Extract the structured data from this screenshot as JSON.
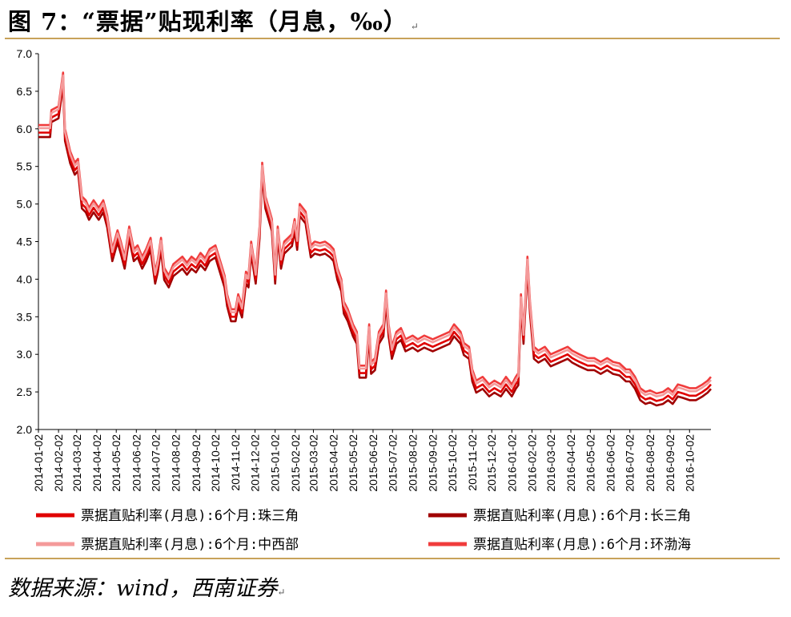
{
  "title": "图 7：“票据”贴现利率（月息，‰）",
  "title_mark": "↵",
  "source": "数据来源：wind，西南证券",
  "source_mark": "↵",
  "colors": {
    "rule": "#c8a25a",
    "series": [
      "#e00000",
      "#a00000",
      "#f49a9a",
      "#f03c3c"
    ]
  },
  "chart_data": {
    "type": "line",
    "ylim": [
      2.0,
      7.0
    ],
    "yticks": [
      "7.0",
      "6.5",
      "6.0",
      "5.5",
      "5.0",
      "4.5",
      "4.0",
      "3.5",
      "3.0",
      "2.5",
      "2.0"
    ],
    "x_tick_labels": [
      "2014-01-02",
      "2014-02-02",
      "2014-03-02",
      "2014-04-02",
      "2014-05-02",
      "2014-06-02",
      "2014-07-02",
      "2014-08-02",
      "2014-09-02",
      "2014-10-02",
      "2014-11-02",
      "2014-12-02",
      "2015-01-02",
      "2015-02-02",
      "2015-03-02",
      "2015-04-02",
      "2015-05-02",
      "2015-06-02",
      "2015-07-02",
      "2015-08-02",
      "2015-09-02",
      "2015-10-02",
      "2015-11-02",
      "2015-12-02",
      "2016-01-02",
      "2016-02-02",
      "2016-03-02",
      "2016-04-02",
      "2016-05-02",
      "2016-06-02",
      "2016-07-02",
      "2016-08-02",
      "2016-09-02",
      "2016-10-02"
    ],
    "x_range": [
      "2014-01-02",
      "2016-11-04"
    ],
    "legend": "bottom",
    "series": [
      {
        "name": "票据直贴利率(月息):6个月:珠三角",
        "offset": 0.0
      },
      {
        "name": "票据直贴利率(月息):6个月:长三角",
        "offset": -0.06
      },
      {
        "name": "票据直贴利率(月息):6个月:中西部",
        "offset": 0.06
      },
      {
        "name": "票据直贴利率(月息):6个月:环渤海",
        "offset": 0.1
      }
    ],
    "base_series": [
      [
        "2014-01-02",
        5.95
      ],
      [
        "2014-01-20",
        5.95
      ],
      [
        "2014-01-22",
        6.15
      ],
      [
        "2014-02-02",
        6.2
      ],
      [
        "2014-02-09",
        6.65
      ],
      [
        "2014-02-12",
        5.9
      ],
      [
        "2014-02-20",
        5.6
      ],
      [
        "2014-02-27",
        5.45
      ],
      [
        "2014-03-04",
        5.5
      ],
      [
        "2014-03-10",
        5.0
      ],
      [
        "2014-03-16",
        4.95
      ],
      [
        "2014-03-21",
        4.85
      ],
      [
        "2014-03-28",
        4.95
      ],
      [
        "2014-04-05",
        4.85
      ],
      [
        "2014-04-12",
        4.95
      ],
      [
        "2014-04-18",
        4.75
      ],
      [
        "2014-04-26",
        4.3
      ],
      [
        "2014-05-04",
        4.55
      ],
      [
        "2014-05-09",
        4.4
      ],
      [
        "2014-05-15",
        4.2
      ],
      [
        "2014-05-22",
        4.6
      ],
      [
        "2014-05-29",
        4.3
      ],
      [
        "2014-06-04",
        4.35
      ],
      [
        "2014-06-11",
        4.2
      ],
      [
        "2014-06-17",
        4.3
      ],
      [
        "2014-06-24",
        4.45
      ],
      [
        "2014-07-01",
        4.0
      ],
      [
        "2014-07-05",
        4.15
      ],
      [
        "2014-07-10",
        4.45
      ],
      [
        "2014-07-15",
        4.05
      ],
      [
        "2014-07-22",
        3.95
      ],
      [
        "2014-07-29",
        4.1
      ],
      [
        "2014-08-05",
        4.15
      ],
      [
        "2014-08-12",
        4.2
      ],
      [
        "2014-08-19",
        4.12
      ],
      [
        "2014-08-26",
        4.2
      ],
      [
        "2014-09-02",
        4.15
      ],
      [
        "2014-09-09",
        4.25
      ],
      [
        "2014-09-16",
        4.18
      ],
      [
        "2014-09-23",
        4.3
      ],
      [
        "2014-10-02",
        4.35
      ],
      [
        "2014-10-09",
        4.15
      ],
      [
        "2014-10-16",
        3.95
      ],
      [
        "2014-10-20",
        3.7
      ],
      [
        "2014-10-26",
        3.5
      ],
      [
        "2014-11-02",
        3.5
      ],
      [
        "2014-11-06",
        3.7
      ],
      [
        "2014-11-12",
        3.55
      ],
      [
        "2014-11-18",
        4.0
      ],
      [
        "2014-11-22",
        3.95
      ],
      [
        "2014-11-26",
        4.4
      ],
      [
        "2014-12-03",
        4.0
      ],
      [
        "2014-12-09",
        4.6
      ],
      [
        "2014-12-13",
        5.45
      ],
      [
        "2014-12-18",
        5.0
      ],
      [
        "2014-12-23",
        4.85
      ],
      [
        "2014-12-28",
        4.7
      ],
      [
        "2015-01-02",
        4.0
      ],
      [
        "2015-01-06",
        4.6
      ],
      [
        "2015-01-11",
        4.2
      ],
      [
        "2015-01-16",
        4.4
      ],
      [
        "2015-01-22",
        4.45
      ],
      [
        "2015-01-28",
        4.5
      ],
      [
        "2015-02-01",
        4.7
      ],
      [
        "2015-02-05",
        4.45
      ],
      [
        "2015-02-09",
        4.9
      ],
      [
        "2015-02-18",
        4.8
      ],
      [
        "2015-02-26",
        4.35
      ],
      [
        "2015-03-04",
        4.4
      ],
      [
        "2015-03-12",
        4.38
      ],
      [
        "2015-03-20",
        4.4
      ],
      [
        "2015-03-28",
        4.35
      ],
      [
        "2015-04-02",
        4.3
      ],
      [
        "2015-04-08",
        4.05
      ],
      [
        "2015-04-14",
        3.9
      ],
      [
        "2015-04-18",
        3.6
      ],
      [
        "2015-04-24",
        3.5
      ],
      [
        "2015-05-02",
        3.3
      ],
      [
        "2015-05-08",
        3.2
      ],
      [
        "2015-05-12",
        2.75
      ],
      [
        "2015-05-22",
        2.75
      ],
      [
        "2015-05-27",
        3.3
      ],
      [
        "2015-05-30",
        2.8
      ],
      [
        "2015-06-05",
        2.85
      ],
      [
        "2015-06-11",
        3.2
      ],
      [
        "2015-06-18",
        3.3
      ],
      [
        "2015-06-22",
        3.75
      ],
      [
        "2015-06-26",
        3.3
      ],
      [
        "2015-07-01",
        3.0
      ],
      [
        "2015-07-08",
        3.2
      ],
      [
        "2015-07-15",
        3.25
      ],
      [
        "2015-07-22",
        3.1
      ],
      [
        "2015-08-02",
        3.15
      ],
      [
        "2015-08-10",
        3.1
      ],
      [
        "2015-08-20",
        3.15
      ],
      [
        "2015-09-02",
        3.1
      ],
      [
        "2015-09-15",
        3.15
      ],
      [
        "2015-09-28",
        3.2
      ],
      [
        "2015-10-05",
        3.3
      ],
      [
        "2015-10-15",
        3.2
      ],
      [
        "2015-10-20",
        3.05
      ],
      [
        "2015-10-28",
        3.0
      ],
      [
        "2015-11-02",
        2.7
      ],
      [
        "2015-11-08",
        2.55
      ],
      [
        "2015-11-18",
        2.6
      ],
      [
        "2015-11-28",
        2.5
      ],
      [
        "2015-12-06",
        2.55
      ],
      [
        "2015-12-16",
        2.5
      ],
      [
        "2015-12-24",
        2.6
      ],
      [
        "2016-01-02",
        2.5
      ],
      [
        "2016-01-08",
        2.6
      ],
      [
        "2016-01-12",
        2.65
      ],
      [
        "2016-01-16",
        3.7
      ],
      [
        "2016-01-20",
        3.2
      ],
      [
        "2016-01-26",
        4.2
      ],
      [
        "2016-01-30",
        3.6
      ],
      [
        "2016-02-05",
        3.0
      ],
      [
        "2016-02-12",
        2.95
      ],
      [
        "2016-02-22",
        3.0
      ],
      [
        "2016-03-02",
        2.9
      ],
      [
        "2016-03-15",
        2.95
      ],
      [
        "2016-03-28",
        3.0
      ],
      [
        "2016-04-04",
        2.95
      ],
      [
        "2016-04-15",
        2.9
      ],
      [
        "2016-04-28",
        2.85
      ],
      [
        "2016-05-08",
        2.85
      ],
      [
        "2016-05-18",
        2.8
      ],
      [
        "2016-05-28",
        2.85
      ],
      [
        "2016-06-06",
        2.8
      ],
      [
        "2016-06-16",
        2.78
      ],
      [
        "2016-06-26",
        2.7
      ],
      [
        "2016-07-02",
        2.7
      ],
      [
        "2016-07-10",
        2.6
      ],
      [
        "2016-07-18",
        2.45
      ],
      [
        "2016-07-26",
        2.4
      ],
      [
        "2016-08-02",
        2.42
      ],
      [
        "2016-08-12",
        2.38
      ],
      [
        "2016-08-22",
        2.4
      ],
      [
        "2016-08-30",
        2.45
      ],
      [
        "2016-09-06",
        2.4
      ],
      [
        "2016-09-14",
        2.5
      ],
      [
        "2016-09-22",
        2.48
      ],
      [
        "2016-10-02",
        2.45
      ],
      [
        "2016-10-12",
        2.45
      ],
      [
        "2016-10-22",
        2.5
      ],
      [
        "2016-10-30",
        2.55
      ],
      [
        "2016-11-04",
        2.6
      ]
    ]
  }
}
